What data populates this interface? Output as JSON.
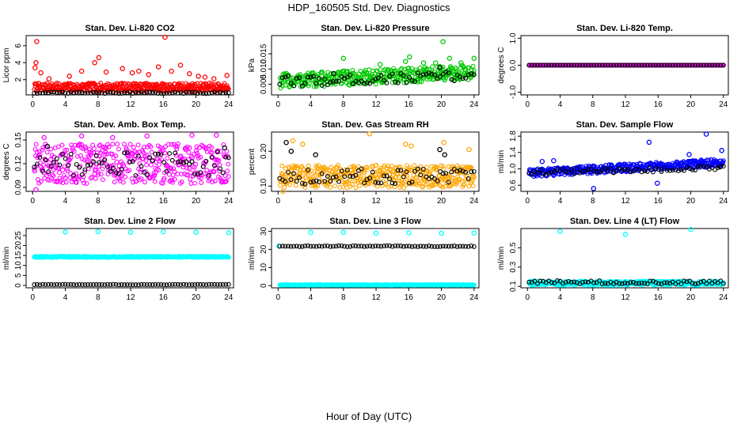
{
  "figure": {
    "title": "HDP_160505  Std. Dev. Diagnostics",
    "xlabel": "Hour of Day (UTC)"
  },
  "chart_data": [
    {
      "type": "scatter",
      "title": "Stan. Dev. Li-820 CO2",
      "ylabel": "Licor ppm",
      "xlim": [
        -0.8,
        24.6
      ],
      "ylim": [
        0.2,
        7.2
      ],
      "xticks": [
        "0",
        "4",
        "8",
        "12",
        "16",
        "20",
        "24"
      ],
      "yticks": [
        "2",
        "4",
        "6"
      ],
      "series": [
        {
          "color": "#ff0000",
          "band": [
            0.6,
            1.6
          ],
          "outliers": [
            [
              0.5,
              6.5
            ],
            [
              0.3,
              3.4
            ],
            [
              0.4,
              4.0
            ],
            [
              1.0,
              2.8
            ],
            [
              2.0,
              2.1
            ],
            [
              4.5,
              2.4
            ],
            [
              6.0,
              3.0
            ],
            [
              7.6,
              4.0
            ],
            [
              8.1,
              4.6
            ],
            [
              9.0,
              2.9
            ],
            [
              11.0,
              3.3
            ],
            [
              12.2,
              2.8
            ],
            [
              13.0,
              3.0
            ],
            [
              14.2,
              2.6
            ],
            [
              15.4,
              3.5
            ],
            [
              16.2,
              7.0
            ],
            [
              17.0,
              3.0
            ],
            [
              18.1,
              3.7
            ],
            [
              19.2,
              2.7
            ],
            [
              20.3,
              2.4
            ],
            [
              21.1,
              2.3
            ],
            [
              22.2,
              2.1
            ],
            [
              23.8,
              2.5
            ]
          ]
        },
        {
          "color": "#000000",
          "band": [
            0.35,
            0.55
          ],
          "outliers": []
        }
      ]
    },
    {
      "type": "scatter",
      "title": "Stan. Dev. Li-820 Pressure",
      "ylabel": "kPa",
      "xlim": [
        -0.8,
        24.6
      ],
      "ylim": [
        0.0015,
        0.021
      ],
      "xticks": [
        "0",
        "4",
        "8",
        "12",
        "16",
        "20",
        "24"
      ],
      "yticks": [
        "0.005",
        "0.010",
        "0.015"
      ],
      "series": [
        {
          "color": "#00c800",
          "band": [
            0.0035,
            0.0085
          ],
          "trend": 0.003,
          "outliers": [
            [
              8.0,
              0.0135
            ],
            [
              12.5,
              0.0115
            ],
            [
              15.6,
              0.0125
            ],
            [
              16.1,
              0.014
            ],
            [
              17.8,
              0.012
            ],
            [
              19.3,
              0.012
            ],
            [
              20.2,
              0.019
            ],
            [
              21.0,
              0.0135
            ],
            [
              22.4,
              0.012
            ],
            [
              24.0,
              0.0135
            ]
          ]
        },
        {
          "color": "#000000",
          "band": [
            0.004,
            0.0075
          ],
          "trend": 0.002,
          "outliers": [
            [
              6.8,
              0.0085
            ],
            [
              19.8,
              0.0105
            ]
          ]
        }
      ]
    },
    {
      "type": "scatter",
      "title": "Stan. Dev. Li-820 Temp.",
      "ylabel": "degrees C",
      "xlim": [
        -0.8,
        24.6
      ],
      "ylim": [
        -1.1,
        1.1
      ],
      "xticks": [
        "0",
        "4",
        "8",
        "12",
        "16",
        "20",
        "24"
      ],
      "yticks": [
        "-1.0",
        "0.0",
        "1.0"
      ],
      "series": [
        {
          "color": "#ff00ff",
          "band": [
            0,
            0
          ],
          "outliers": []
        },
        {
          "color": "#000000",
          "band": [
            0,
            0
          ],
          "outliers": []
        }
      ]
    },
    {
      "type": "scatter",
      "title": "Stan. Dev. Amb. Box Temp.",
      "ylabel": "degrees C",
      "xlim": [
        -0.8,
        24.6
      ],
      "ylim": [
        0.085,
        0.16
      ],
      "xticks": [
        "0",
        "4",
        "8",
        "12",
        "16",
        "20",
        "24"
      ],
      "yticks": [
        "0.09",
        "0.12",
        "0.15"
      ],
      "series": [
        {
          "color": "#ff00ff",
          "band": [
            0.095,
            0.145
          ],
          "outliers": [
            [
              0.4,
              0.087
            ],
            [
              1.4,
              0.153
            ],
            [
              6.0,
              0.155
            ],
            [
              9.8,
              0.153
            ],
            [
              14.0,
              0.155
            ],
            [
              19.5,
              0.156
            ],
            [
              22.5,
              0.156
            ]
          ]
        },
        {
          "color": "#000000",
          "band": [
            0.105,
            0.135
          ],
          "outliers": [
            [
              1.8,
              0.142
            ],
            [
              23.5,
              0.14
            ]
          ]
        }
      ]
    },
    {
      "type": "scatter",
      "title": "Stan. Dev. Gas Stream RH",
      "ylabel": "percent",
      "xlim": [
        -0.8,
        24.6
      ],
      "ylim": [
        0.085,
        0.255
      ],
      "xticks": [
        "0",
        "4",
        "8",
        "12",
        "16",
        "20",
        "24"
      ],
      "yticks": [
        "0.10",
        "0.20"
      ],
      "series": [
        {
          "color": "#ffa500",
          "band": [
            0.095,
            0.16
          ],
          "outliers": [
            [
              1.8,
              0.23
            ],
            [
              3.0,
              0.22
            ],
            [
              11.2,
              0.25
            ],
            [
              15.6,
              0.22
            ],
            [
              16.3,
              0.215
            ],
            [
              20.3,
              0.225
            ],
            [
              23.4,
              0.205
            ],
            [
              0.6,
              0.085
            ]
          ]
        },
        {
          "color": "#000000",
          "band": [
            0.105,
            0.15
          ],
          "outliers": [
            [
              1.0,
              0.225
            ],
            [
              1.6,
              0.2
            ],
            [
              4.6,
              0.19
            ],
            [
              19.8,
              0.205
            ],
            [
              20.4,
              0.19
            ]
          ]
        }
      ]
    },
    {
      "type": "scatter",
      "title": "Stan. Dev. Sample Flow",
      "ylabel": "ml/min",
      "xlim": [
        -0.8,
        24.6
      ],
      "ylim": [
        0.45,
        1.9
      ],
      "xticks": [
        "0",
        "4",
        "8",
        "12",
        "16",
        "20",
        "24"
      ],
      "yticks": [
        "0.6",
        "1.0",
        "1.4",
        "1.8"
      ],
      "series": [
        {
          "color": "#0000ff",
          "band": [
            0.8,
            1.0
          ],
          "trend": 0.25,
          "outliers": [
            [
              1.8,
              1.18
            ],
            [
              3.2,
              1.2
            ],
            [
              8.1,
              0.52
            ],
            [
              14.9,
              1.65
            ],
            [
              15.9,
              0.65
            ],
            [
              19.8,
              1.35
            ],
            [
              21.9,
              1.85
            ],
            [
              23.8,
              1.45
            ]
          ]
        },
        {
          "color": "#000000",
          "band": [
            0.85,
            0.98
          ],
          "trend": 0.1,
          "outliers": [
            [
              23.6,
              1.05
            ]
          ]
        }
      ]
    },
    {
      "type": "scatter",
      "title": "Stan. Dev. Line 2 Flow",
      "ylabel": "ml/min",
      "xlim": [
        -0.8,
        24.6
      ],
      "ylim": [
        -1.2,
        28.5
      ],
      "xticks": [
        "0",
        "4",
        "8",
        "12",
        "16",
        "20",
        "24"
      ],
      "yticks": [
        "0",
        "5",
        "10",
        "15",
        "20",
        "25"
      ],
      "series": [
        {
          "color": "#00ffff",
          "band": [
            14.0,
            14.6
          ],
          "outliers": [
            [
              4.0,
              26.8
            ],
            [
              8.0,
              27.0
            ],
            [
              12.0,
              26.6
            ],
            [
              16.0,
              26.9
            ],
            [
              20.0,
              26.6
            ],
            [
              24.0,
              26.4
            ]
          ]
        },
        {
          "color": "#000000",
          "band": [
            0.3,
            0.5
          ],
          "outliers": []
        }
      ]
    },
    {
      "type": "scatter",
      "title": "Stan. Dev. Line 3 Flow",
      "ylabel": "ml/min",
      "xlim": [
        -0.8,
        24.6
      ],
      "ylim": [
        -1.2,
        31.5
      ],
      "xticks": [
        "0",
        "4",
        "8",
        "12",
        "16",
        "20",
        "24"
      ],
      "yticks": [
        "0",
        "10",
        "20",
        "30"
      ],
      "series": [
        {
          "color": "#00ffff",
          "band": [
            0.2,
            0.6
          ],
          "outliers": [
            [
              0.1,
              21.8
            ],
            [
              4.0,
              29.3
            ],
            [
              8.0,
              29.4
            ],
            [
              12.0,
              28.9
            ],
            [
              16.0,
              29.1
            ],
            [
              20.0,
              28.9
            ],
            [
              24.0,
              29.0
            ]
          ]
        },
        {
          "color": "#000000",
          "band": [
            21.5,
            22.0
          ],
          "outliers": []
        }
      ]
    },
    {
      "type": "scatter",
      "title": "Stan. Dev. Line 4 (LT) Flow",
      "ylabel": "ml/min",
      "xlim": [
        -0.8,
        24.6
      ],
      "ylim": [
        0.085,
        0.7
      ],
      "xticks": [
        "0",
        "4",
        "8",
        "12",
        "16",
        "20",
        "24"
      ],
      "yticks": [
        "0.1",
        "0.3",
        "0.5"
      ],
      "series": [
        {
          "color": "#00ffff",
          "band": [
            0.11,
            0.155
          ],
          "outliers": [
            [
              4.0,
              0.67
            ],
            [
              12.0,
              0.64
            ],
            [
              20.0,
              0.69
            ]
          ]
        },
        {
          "color": "#000000",
          "band": [
            0.125,
            0.16
          ],
          "outliers": []
        }
      ]
    }
  ]
}
